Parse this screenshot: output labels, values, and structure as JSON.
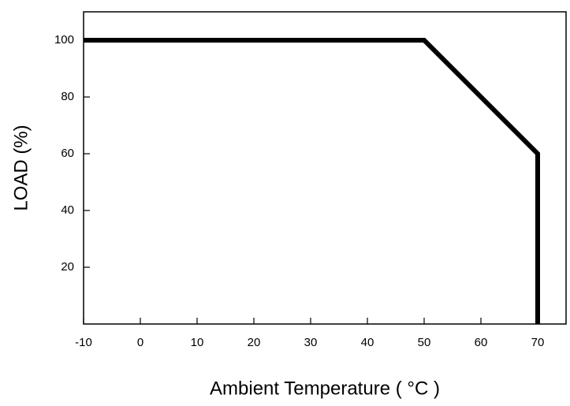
{
  "chart_data": {
    "type": "line",
    "x_label": "Ambient Temperature ( °C )",
    "y_label": "LOAD (%)",
    "x": [
      -10,
      50,
      70,
      70
    ],
    "values": [
      100,
      100,
      60,
      0
    ],
    "color": "#000000",
    "xlim": [
      -10,
      75
    ],
    "xticks": [
      -10,
      0,
      10,
      20,
      30,
      40,
      50,
      60,
      70
    ],
    "ylim": [
      0,
      110
    ],
    "yticks": [
      20,
      40,
      60,
      80,
      100
    ]
  }
}
